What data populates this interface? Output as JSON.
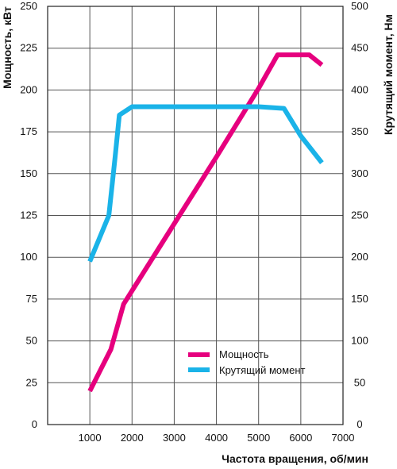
{
  "chart_data": {
    "type": "line",
    "title": "",
    "xlabel": "Частота вращения, об/мин",
    "ylabel_left": "Мощность, кВт",
    "ylabel_right": "Крутящий момент, Нм",
    "x_ticks": [
      1000,
      2000,
      3000,
      4000,
      5000,
      6000,
      7000
    ],
    "y_left_ticks": [
      0,
      25,
      50,
      75,
      100,
      125,
      150,
      175,
      200,
      225,
      250
    ],
    "y_right_ticks": [
      0,
      50,
      100,
      150,
      200,
      250,
      300,
      350,
      400,
      450,
      500
    ],
    "xlim": [
      0,
      7000
    ],
    "ylim_left": [
      0,
      250
    ],
    "ylim_right": [
      0,
      500
    ],
    "grid": true,
    "legend_position": "bottom-right",
    "series": [
      {
        "name": "Мощность",
        "axis": "left",
        "color": "#e6007e",
        "x": [
          1000,
          1500,
          1800,
          2000,
          3000,
          4000,
          5000,
          5450,
          6200,
          6500
        ],
        "y": [
          20,
          45,
          72,
          80,
          120,
          160,
          201,
          221,
          221,
          215
        ]
      },
      {
        "name": "Крутящий момент",
        "axis": "right",
        "color": "#1ab3e8",
        "x": [
          1000,
          1450,
          1600,
          1700,
          2000,
          3000,
          4000,
          5000,
          5600,
          6000,
          6500
        ],
        "y": [
          195,
          250,
          320,
          370,
          380,
          380,
          380,
          380,
          378,
          345,
          313
        ]
      }
    ]
  }
}
